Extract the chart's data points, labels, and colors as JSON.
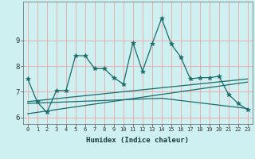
{
  "title": "",
  "xlabel": "Humidex (Indice chaleur)",
  "bg_color": "#cff0f0",
  "grid_color": "#e8b0b0",
  "line_color": "#1a6b6b",
  "x_ticks": [
    0,
    1,
    2,
    3,
    4,
    5,
    6,
    7,
    8,
    9,
    10,
    11,
    12,
    13,
    14,
    15,
    16,
    17,
    18,
    19,
    20,
    21,
    22,
    23
  ],
  "y_ticks": [
    6,
    7,
    8,
    9
  ],
  "ylim": [
    5.75,
    10.5
  ],
  "xlim": [
    -0.5,
    23.5
  ],
  "main_x": [
    0,
    1,
    2,
    3,
    4,
    5,
    6,
    7,
    8,
    9,
    10,
    11,
    12,
    13,
    14,
    15,
    16,
    17,
    18,
    19,
    20,
    21,
    22,
    23
  ],
  "main_y": [
    7.5,
    6.6,
    6.2,
    7.05,
    7.05,
    8.4,
    8.4,
    7.9,
    7.9,
    7.55,
    7.3,
    8.9,
    7.8,
    8.85,
    9.85,
    8.85,
    8.35,
    7.5,
    7.55,
    7.55,
    7.6,
    6.9,
    6.55,
    6.3
  ],
  "trend1_x": [
    0,
    23
  ],
  "trend1_y": [
    6.62,
    7.5
  ],
  "trend2_x": [
    0,
    23
  ],
  "trend2_y": [
    6.15,
    7.38
  ],
  "trend3_x": [
    0,
    14,
    23
  ],
  "trend3_y": [
    6.55,
    6.75,
    6.35
  ]
}
